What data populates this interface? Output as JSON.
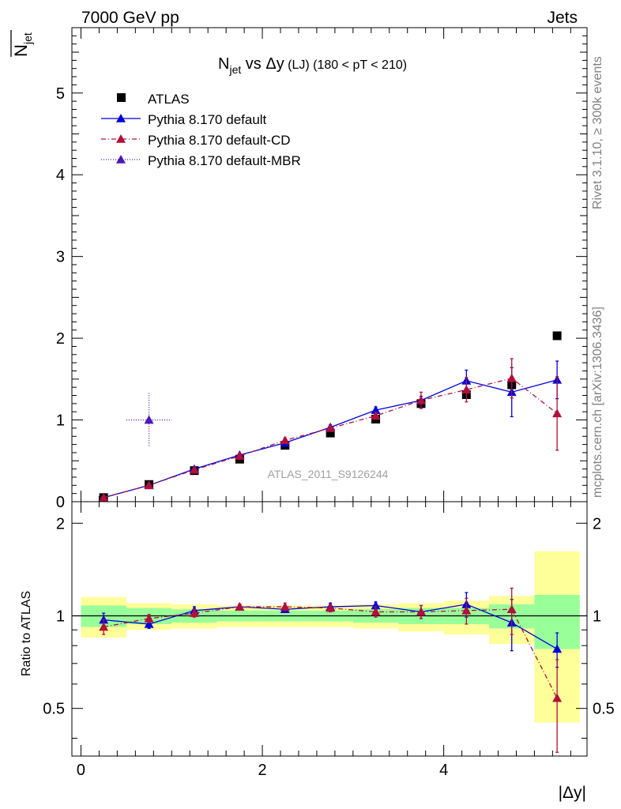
{
  "header": {
    "left": "7000 GeV pp",
    "right": "Jets"
  },
  "side_labels": {
    "rivet": "Rivet 3.1.10, ≥ 300k events",
    "mcplots": "mcplots.cern.ch [arXiv:1306.3436]"
  },
  "chart_data": [
    {
      "type": "scatter",
      "title": {
        "main": "N",
        "main_sub": "jet",
        "vs": " vs Δy",
        "lj": " (LJ)",
        "range": " (180 < pT < 210)"
      },
      "ylabel": {
        "bar": "N",
        "sub": "jet"
      },
      "watermark": "ATLAS_2011_S9126244",
      "xlim": [
        -0.1,
        5.58
      ],
      "ylim": [
        0,
        5.8
      ],
      "yticks": [
        {
          "v": 0,
          "label": "0"
        },
        {
          "v": 1,
          "label": "1"
        },
        {
          "v": 2,
          "label": "2"
        },
        {
          "v": 3,
          "label": "3"
        },
        {
          "v": 4,
          "label": "4"
        },
        {
          "v": 5,
          "label": "5"
        }
      ],
      "legend": [
        {
          "label": "ATLAS",
          "kind": "data",
          "color": "#000000"
        },
        {
          "label": "Pythia 8.170 default",
          "kind": "solid",
          "color": "#0000dd"
        },
        {
          "label": "Pythia 8.170 default-CD",
          "kind": "dashdot",
          "color": "#b0103a"
        },
        {
          "label": "Pythia 8.170 default-MBR",
          "kind": "dotted",
          "color": "#4b18b8"
        }
      ],
      "x": [
        0.25,
        0.75,
        1.25,
        1.75,
        2.25,
        2.75,
        3.25,
        3.75,
        4.25,
        4.75,
        5.25
      ],
      "xerr": 0.25,
      "series": [
        {
          "name": "ATLAS",
          "color": "#000000",
          "values": [
            0.05,
            0.21,
            0.38,
            0.52,
            0.69,
            0.84,
            1.01,
            1.2,
            1.31,
            1.43,
            2.03
          ]
        },
        {
          "name": "Pythia 8.170 default",
          "color": "#0000dd",
          "dash": "",
          "values": [
            0.05,
            0.2,
            0.4,
            0.57,
            0.72,
            0.91,
            1.12,
            1.24,
            1.48,
            1.34,
            1.49
          ],
          "err": [
            0.01,
            0.02,
            0.02,
            0.02,
            0.03,
            0.03,
            0.04,
            0.05,
            0.13,
            0.3,
            0.23
          ]
        },
        {
          "name": "Pythia 8.170 default-CD",
          "color": "#b0103a",
          "dash": "6,3,1,3",
          "values": [
            0.05,
            0.2,
            0.39,
            0.56,
            0.75,
            0.9,
            1.05,
            1.24,
            1.37,
            1.51,
            1.08
          ],
          "err": [
            0.01,
            0.02,
            0.02,
            0.02,
            0.03,
            0.03,
            0.04,
            0.1,
            0.15,
            0.24,
            0.45
          ]
        },
        {
          "name": "Pythia 8.170 default-MBR",
          "color": "#4b18b8",
          "dash": "1,2",
          "points": [
            {
              "x": 0.75,
              "xerr": 0.25,
              "y": 1.0,
              "err": 0.33
            }
          ]
        }
      ]
    },
    {
      "type": "scatter",
      "ylabel": "Ratio to ATLAS",
      "xlabel": "|Δy|",
      "ylim": [
        0.35,
        2.35
      ],
      "xlim": [
        -0.1,
        5.58
      ],
      "yticks": [
        {
          "v": 0.5,
          "label": "0.5"
        },
        {
          "v": 1,
          "label": "1"
        },
        {
          "v": 2,
          "label": "2"
        }
      ],
      "xticks": [
        {
          "v": 0,
          "label": "0"
        },
        {
          "v": 2,
          "label": "2"
        },
        {
          "v": 4,
          "label": "4"
        }
      ],
      "x": [
        0.25,
        0.75,
        1.25,
        1.75,
        2.25,
        2.75,
        3.25,
        3.75,
        4.25,
        4.75,
        5.25
      ],
      "bands": {
        "yellow": {
          "color": "#ffff99",
          "lo": [
            0.85,
            0.9,
            0.91,
            0.92,
            0.92,
            0.92,
            0.91,
            0.89,
            0.87,
            0.81,
            0.45
          ],
          "hi": [
            1.15,
            1.1,
            1.09,
            1.08,
            1.08,
            1.08,
            1.09,
            1.1,
            1.12,
            1.16,
            1.62
          ]
        },
        "green": {
          "color": "#99ff99",
          "lo": [
            0.92,
            0.94,
            0.95,
            0.96,
            0.96,
            0.96,
            0.95,
            0.94,
            0.94,
            0.91,
            0.78
          ],
          "hi": [
            1.08,
            1.06,
            1.05,
            1.04,
            1.04,
            1.04,
            1.05,
            1.06,
            1.06,
            1.09,
            1.17
          ]
        }
      },
      "series": [
        {
          "name": "Pythia 8.170 default",
          "color": "#0000dd",
          "dash": "",
          "values": [
            0.97,
            0.94,
            1.04,
            1.07,
            1.05,
            1.07,
            1.08,
            1.03,
            1.09,
            0.95,
            0.78
          ],
          "err": [
            0.05,
            0.03,
            0.03,
            0.02,
            0.02,
            0.03,
            0.03,
            0.05,
            0.1,
            0.18,
            0.1
          ]
        },
        {
          "name": "Pythia 8.170 default-CD",
          "color": "#b0103a",
          "dash": "6,3,1,3",
          "values": [
            0.92,
            0.98,
            1.02,
            1.07,
            1.07,
            1.06,
            1.03,
            1.03,
            1.04,
            1.05,
            0.54
          ],
          "err": [
            0.05,
            0.03,
            0.03,
            0.02,
            0.03,
            0.03,
            0.04,
            0.05,
            0.1,
            0.18,
            0.18
          ]
        }
      ]
    }
  ]
}
